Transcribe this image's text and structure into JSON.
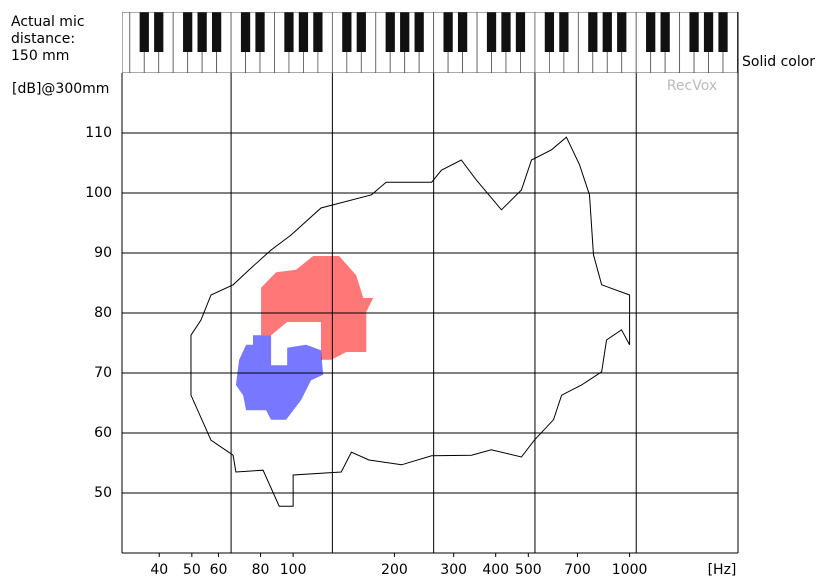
{
  "chart_data": {
    "type": "contour",
    "mic_distance_label": "Actual mic distance:",
    "mic_distance": "150 mm",
    "y_label": "[dB]@300mm",
    "x_label": "[Hz]",
    "legend": "Solid color",
    "watermark": "RecVox",
    "x_log": true,
    "xlim": [
      31,
      2100
    ],
    "ylim": [
      40,
      120
    ],
    "xticks": [
      40,
      50,
      60,
      80,
      100,
      200,
      300,
      400,
      500,
      700,
      1000
    ],
    "yticks": [
      50,
      60,
      70,
      80,
      90,
      100,
      110
    ],
    "xgrid": [
      65.4,
      130.8,
      261.6,
      523.3,
      1046.5
    ],
    "grid": true,
    "regions": [
      {
        "stroke": "#000000",
        "x": [
          49.7,
          49.7,
          57,
          66.3,
          67.6,
          81.4,
          90.9,
          100,
          100,
          139,
          149,
          168,
          210,
          258,
          339,
          388,
          477,
          521,
          594,
          628,
          720,
          826,
          854,
          946,
          1000,
          1000,
          826,
          781,
          760,
          710,
          649,
          586,
          511,
          477,
          416,
          350,
          316,
          276,
          258,
          189,
          171,
          121,
          98.6,
          86,
          75,
          66.3,
          57,
          53.2
        ],
        "y": [
          76.3,
          66.3,
          58.8,
          56.3,
          53.5,
          53.8,
          47.8,
          47.8,
          53,
          53.5,
          56.8,
          55.5,
          54.7,
          56.2,
          56.3,
          57.2,
          56,
          58.8,
          62.2,
          66.3,
          68,
          70.2,
          75.5,
          77.2,
          74.7,
          83,
          84.7,
          89.7,
          99.7,
          104.7,
          109.3,
          107.2,
          105.5,
          100.5,
          97.2,
          102.2,
          105.5,
          103.8,
          101.8,
          101.8,
          99.7,
          97.5,
          93,
          90.5,
          87.5,
          84.7,
          83,
          78.8
        ]
      },
      {
        "color": "#ff7777",
        "x": [
          80.3,
          89,
          102,
          114.7,
          137,
          154,
          161.6,
          173,
          165,
          165,
          144,
          129.7,
          121,
          121,
          96,
          86,
          80.3
        ],
        "y": [
          84.2,
          86.8,
          87.2,
          89.5,
          89.5,
          86.3,
          82.5,
          82.5,
          80.2,
          73.5,
          73.5,
          72.2,
          72.2,
          78.5,
          78.5,
          76.3,
          76.3
        ]
      },
      {
        "color": "#7777ff",
        "x": [
          76,
          86,
          86,
          96,
          96,
          109.3,
          121,
          122.8,
          113.1,
          105.6,
          95.3,
          86,
          83.1,
          72.5,
          71,
          67.6,
          69.1,
          72.5,
          76
        ],
        "y": [
          76.3,
          76.3,
          71.3,
          71.3,
          74.2,
          74.7,
          73.8,
          69.7,
          68.8,
          65.5,
          62.2,
          62.2,
          63.8,
          63.8,
          66.3,
          68,
          72.2,
          74.7,
          74.7
        ]
      }
    ]
  }
}
